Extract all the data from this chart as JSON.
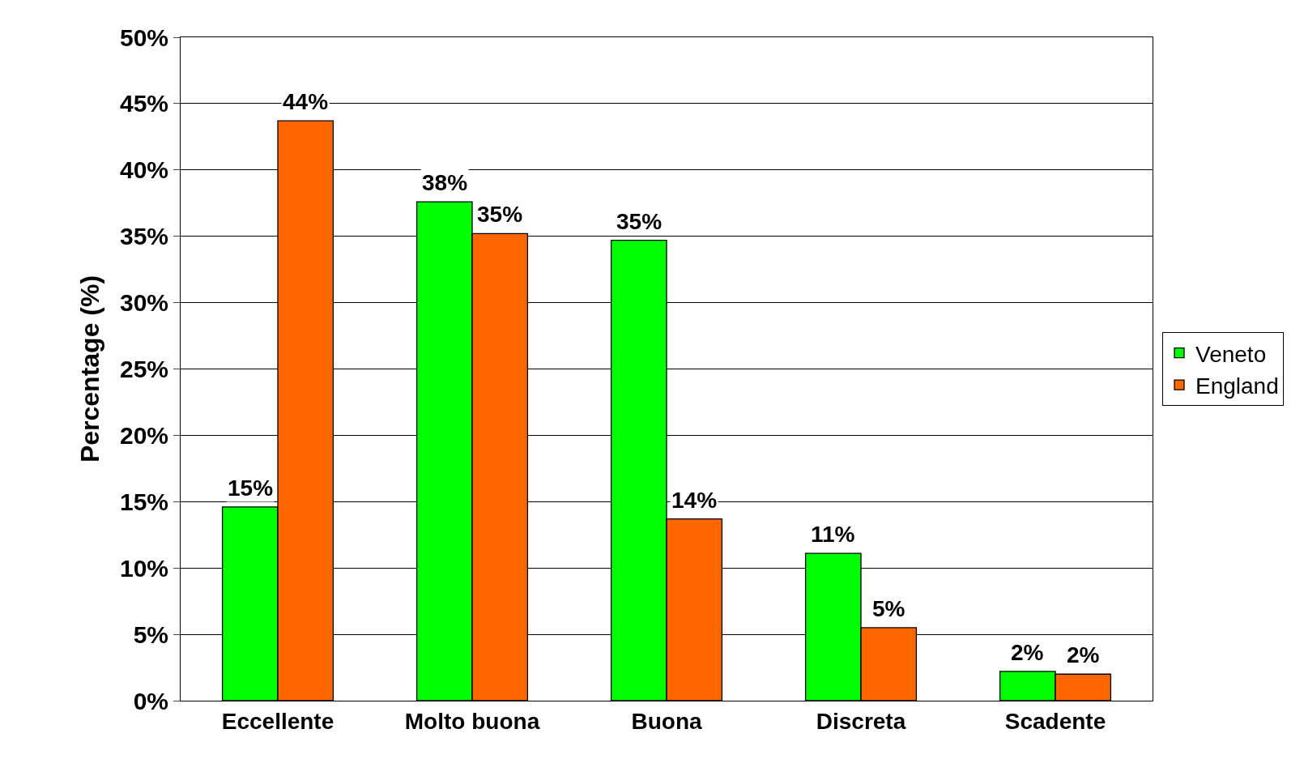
{
  "chart_data": {
    "type": "bar",
    "ylabel": "Percentage (%)",
    "categories": [
      "Eccellente",
      "Molto buona",
      "Buona",
      "Discreta",
      "Scadente"
    ],
    "series": [
      {
        "name": "Veneto",
        "color": "#00ff00",
        "values": [
          14.6,
          37.6,
          34.7,
          11.1,
          2.2
        ],
        "value_labels": [
          "15%",
          "38%",
          "35%",
          "11%",
          "2%"
        ]
      },
      {
        "name": "England",
        "color": "#ff6600",
        "values": [
          43.7,
          35.2,
          13.7,
          5.5,
          2.0
        ],
        "value_labels": [
          "44%",
          "35%",
          "14%",
          "5%",
          "2%"
        ]
      }
    ],
    "ylim": [
      0,
      50
    ],
    "yticks": [
      {
        "value": 0,
        "label": "0%"
      },
      {
        "value": 5,
        "label": "5%"
      },
      {
        "value": 10,
        "label": "10%"
      },
      {
        "value": 15,
        "label": "15%"
      },
      {
        "value": 20,
        "label": "20%"
      },
      {
        "value": 25,
        "label": "25%"
      },
      {
        "value": 30,
        "label": "30%"
      },
      {
        "value": 35,
        "label": "35%"
      },
      {
        "value": 40,
        "label": "40%"
      },
      {
        "value": 45,
        "label": "45%"
      },
      {
        "value": 50,
        "label": "50%"
      }
    ],
    "grid": "y",
    "legend": "right"
  }
}
